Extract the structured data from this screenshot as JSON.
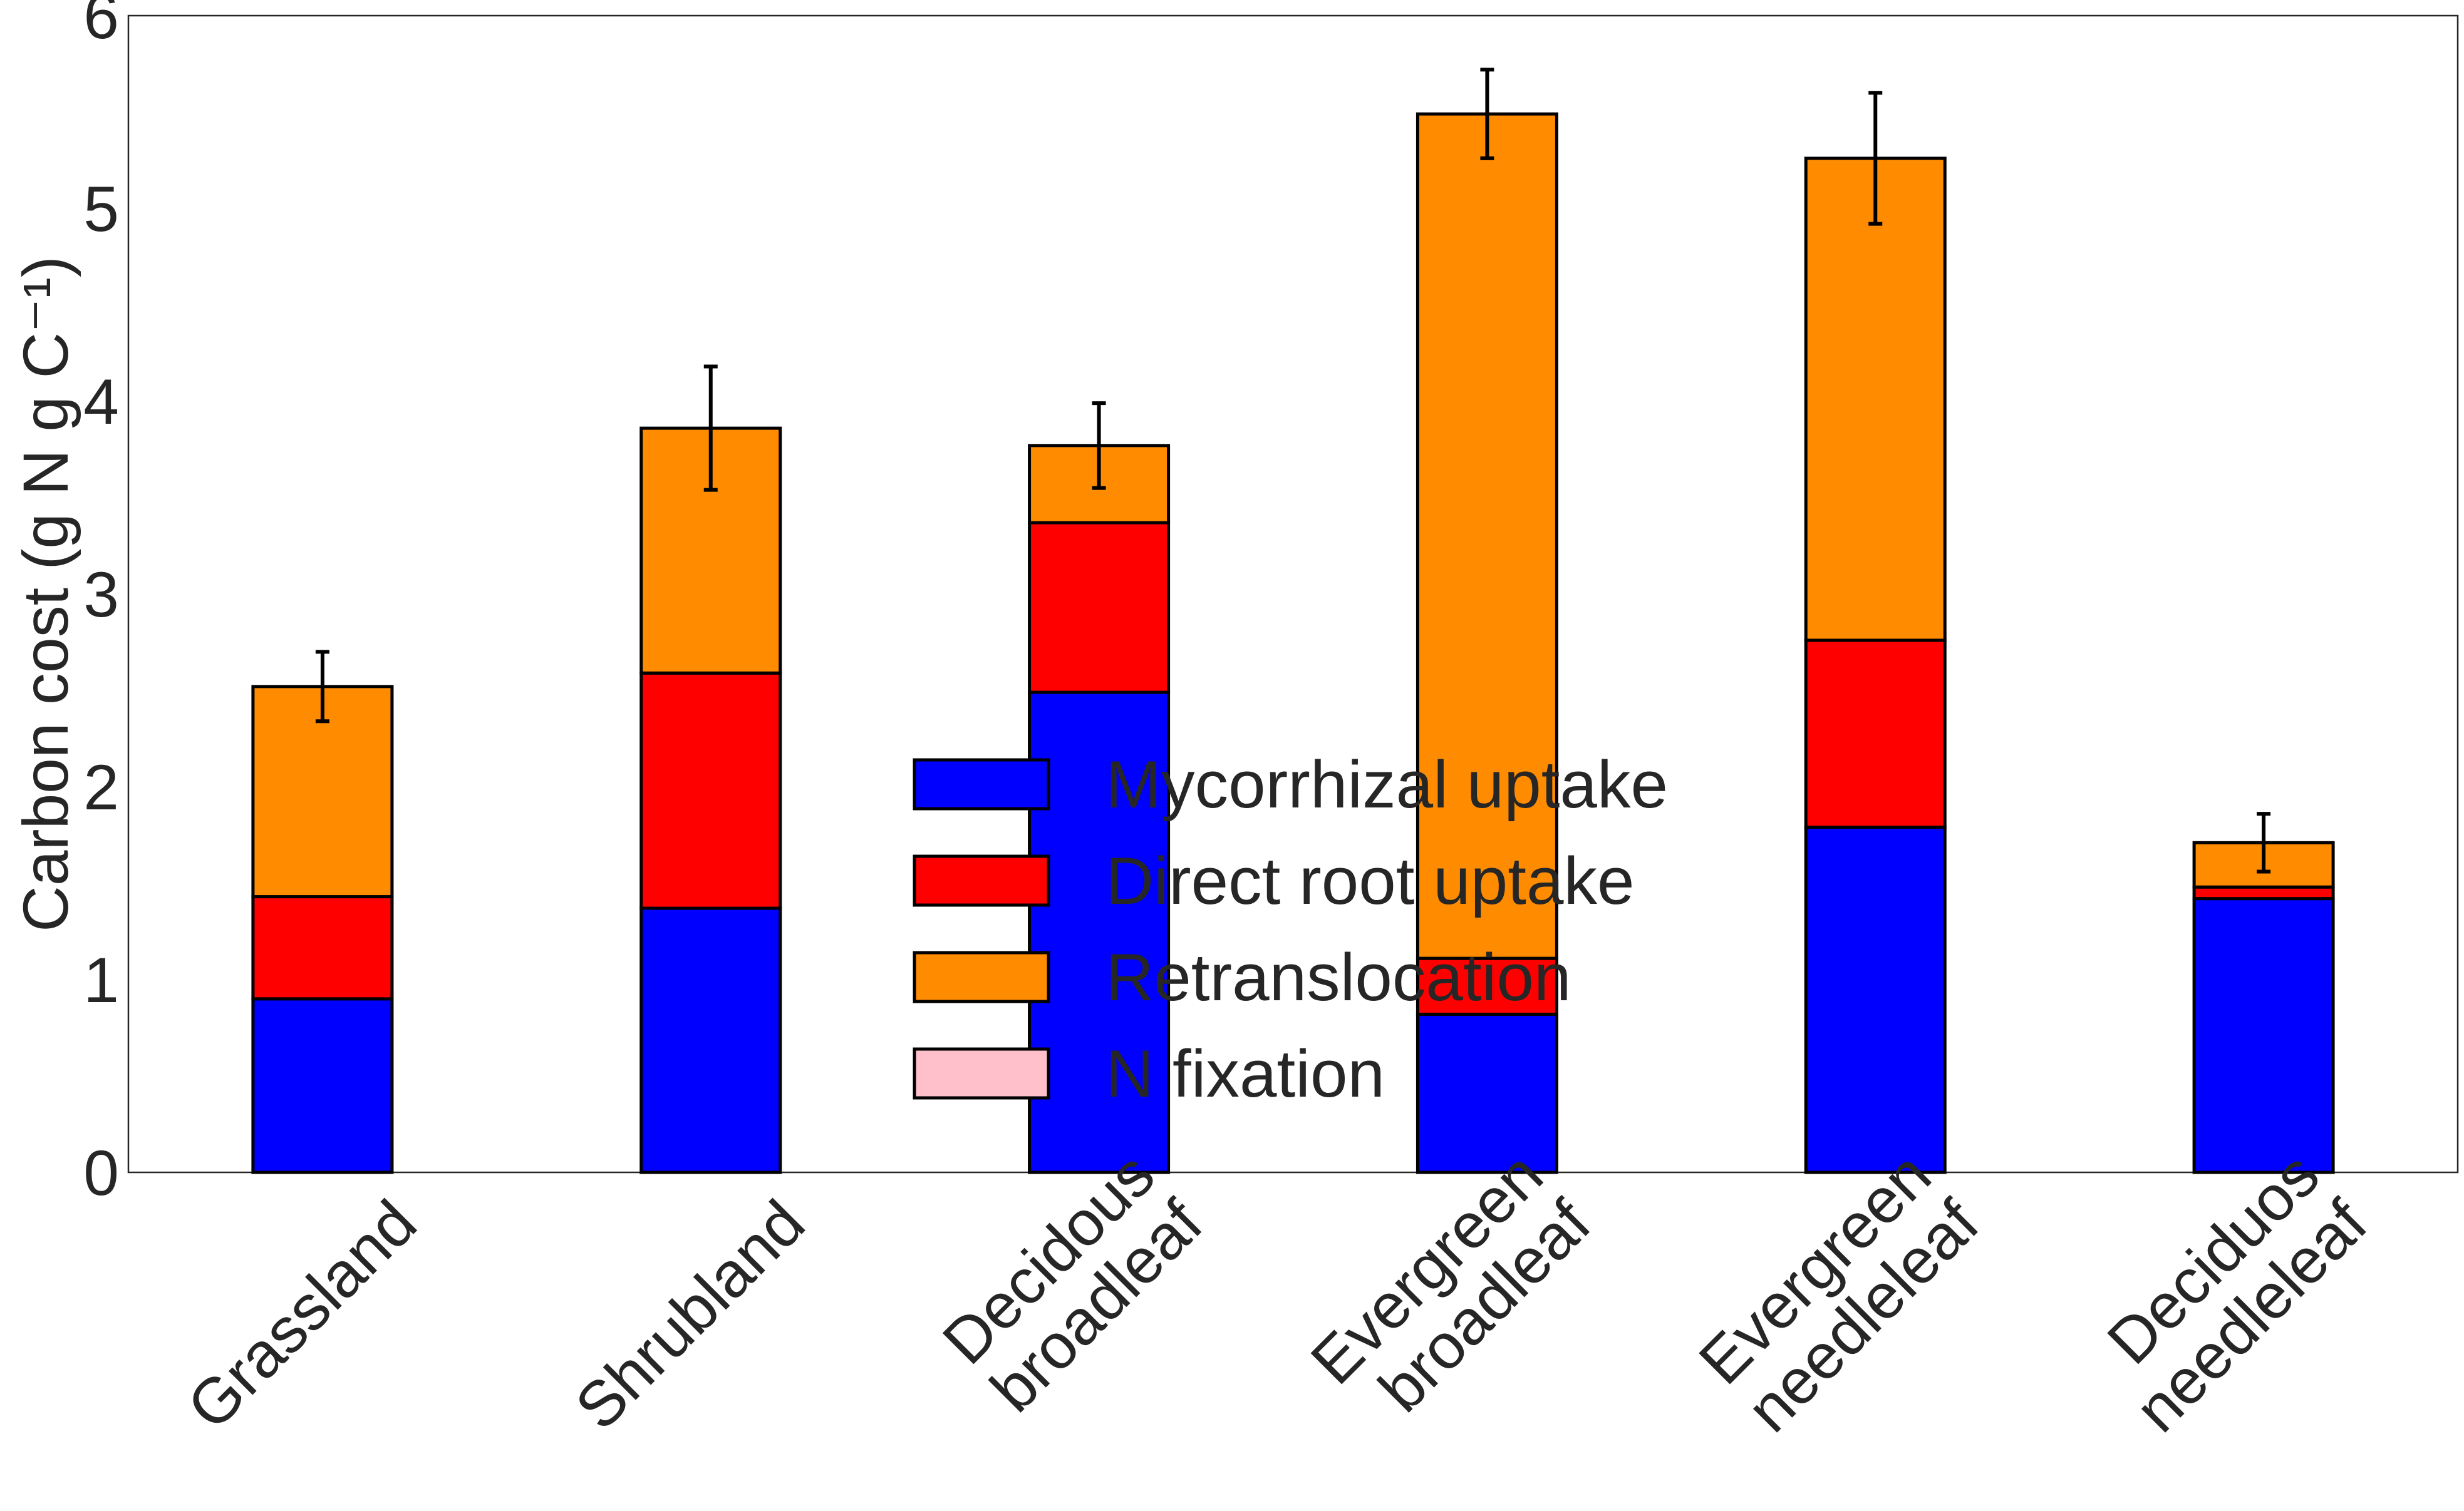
{
  "chart_data": {
    "type": "bar",
    "stacked": true,
    "title": "",
    "xlabel": "",
    "ylabel": "Carbon cost (g N g C⁻¹)",
    "ylim": [
      0,
      6
    ],
    "yticks": [
      "0",
      "1",
      "2",
      "3",
      "4",
      "5",
      "6"
    ],
    "grid": false,
    "legend_position": "center",
    "categories": [
      [
        "Grassland"
      ],
      [
        "Shrubland"
      ],
      [
        "Decidous",
        "broadleaf"
      ],
      [
        "Evergreen",
        "broadleaf"
      ],
      [
        "Evergreen",
        "needleleaf"
      ],
      [
        "Deciduos",
        "needleleaf"
      ]
    ],
    "series": [
      {
        "name": "Mycorrhizal uptake",
        "color": "#0000ff",
        "values": [
          0.9,
          1.37,
          2.49,
          0.82,
          1.79,
          1.42
        ]
      },
      {
        "name": "Direct root uptake",
        "color": "#ff0000",
        "values": [
          0.53,
          1.22,
          0.88,
          0.29,
          0.97,
          0.06
        ]
      },
      {
        "name": "Retranslocation",
        "color": "#ff8c00",
        "values": [
          1.09,
          1.27,
          0.4,
          4.38,
          2.5,
          0.23
        ]
      },
      {
        "name": "N fixation",
        "color": "#ffc0cb",
        "values": [
          0,
          0,
          0,
          0,
          0,
          0
        ]
      }
    ],
    "error_bars": [
      0.18,
      0.32,
      0.22,
      0.23,
      0.34,
      0.15
    ]
  }
}
